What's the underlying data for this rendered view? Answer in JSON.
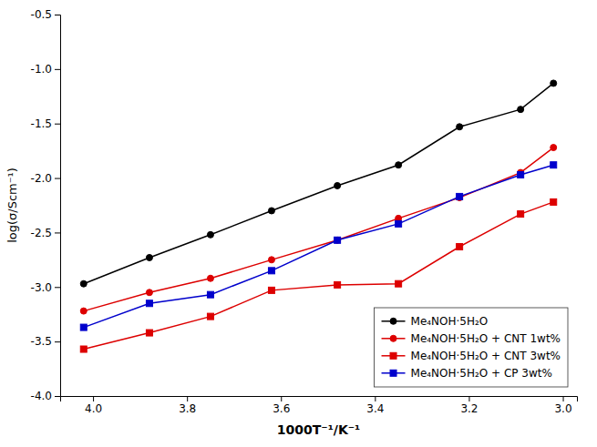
{
  "chart_data": {
    "type": "line",
    "x": [
      4.02,
      3.88,
      3.75,
      3.62,
      3.48,
      3.35,
      3.22,
      3.09,
      3.02
    ],
    "series": [
      {
        "name": "Me₄NOH·5H₂O",
        "color": "black",
        "marker": "circle",
        "values": [
          -2.97,
          -2.73,
          -2.52,
          -2.3,
          -2.07,
          -1.88,
          -1.53,
          -1.37,
          -1.13
        ]
      },
      {
        "name": "Me₄NOH·5H₂O + CNT 1wt%",
        "color": "#dd0000",
        "marker": "circle",
        "values": [
          -3.22,
          -3.05,
          -2.92,
          -2.75,
          -2.57,
          -2.37,
          -2.18,
          -1.95,
          -1.72
        ]
      },
      {
        "name": "Me₄NOH·5H₂O + CNT 3wt%",
        "color": "#dd0000",
        "marker": "square",
        "values": [
          -3.57,
          -3.42,
          -3.27,
          -3.03,
          -2.98,
          -2.97,
          -2.63,
          -2.33,
          -2.22
        ]
      },
      {
        "name": "Me₄NOH·5H₂O + CP 3wt%",
        "color": "#0000cc",
        "marker": "square",
        "values": [
          -3.37,
          -3.15,
          -3.07,
          -2.85,
          -2.57,
          -2.42,
          -2.17,
          -1.97,
          -1.88
        ]
      }
    ],
    "xlabel": "1000T⁻¹/K⁻¹",
    "ylabel": "log(σ/Scm⁻¹)",
    "xlim": [
      4.07,
      2.97
    ],
    "ylim": [
      -4.0,
      -0.5
    ],
    "xticks": [
      {
        "value": 4.0,
        "label": "4.0"
      },
      3.8,
      3.6,
      3.4,
      3.2,
      {
        "value": 3.0,
        "label": "3.0"
      }
    ],
    "yticks": [
      {
        "value": -4.0,
        "label": "-4.0"
      },
      -3.5,
      {
        "value": -3.0,
        "label": "-3.0"
      },
      -2.5,
      {
        "value": -2.0,
        "label": "-2.0"
      },
      -1.5,
      {
        "value": -1.0,
        "label": "-1.0"
      },
      -0.5
    ],
    "legend": "lower right",
    "grid": false
  }
}
